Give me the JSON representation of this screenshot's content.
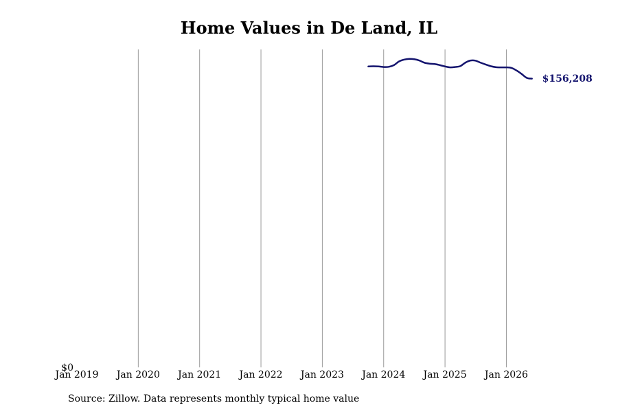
{
  "chart_data": {
    "type": "line",
    "title": "Home Values in De Land, IL",
    "xlabel": "",
    "ylabel": "",
    "x_ticks": [
      "Jan 2019",
      "Jan 2020",
      "Jan 2021",
      "Jan 2022",
      "Jan 2023",
      "Jan 2024",
      "Jan 2025",
      "Jan 2026"
    ],
    "y_ticks": [
      "$0"
    ],
    "ylim": [
      0,
      172000
    ],
    "xlim": [
      "2019-01",
      "2026-09"
    ],
    "grid": "vertical",
    "legend": "none",
    "line_color": "#14146e",
    "end_label": "$156,208",
    "series": [
      {
        "x": [
          "2023-10",
          "2023-11",
          "2023-12",
          "2024-01",
          "2024-02",
          "2024-03",
          "2024-04",
          "2024-05",
          "2024-06",
          "2024-07",
          "2024-08",
          "2024-09",
          "2024-10",
          "2024-11",
          "2024-12",
          "2025-01",
          "2025-02",
          "2025-03",
          "2025-04",
          "2025-05",
          "2025-06",
          "2025-07",
          "2025-08",
          "2025-09",
          "2025-10",
          "2025-11",
          "2025-12",
          "2026-01",
          "2026-02",
          "2026-03",
          "2026-04",
          "2026-05",
          "2026-06"
        ],
        "values": [
          162800,
          162900,
          162800,
          162500,
          162600,
          163500,
          165500,
          166500,
          166900,
          166700,
          166000,
          164800,
          164300,
          164100,
          163500,
          162800,
          162300,
          162500,
          163000,
          164900,
          166000,
          165900,
          164800,
          163800,
          162900,
          162400,
          162300,
          162300,
          162000,
          160600,
          158700,
          156600,
          156208
        ]
      }
    ]
  },
  "source": "Source: Zillow. Data represents monthly typical home value"
}
